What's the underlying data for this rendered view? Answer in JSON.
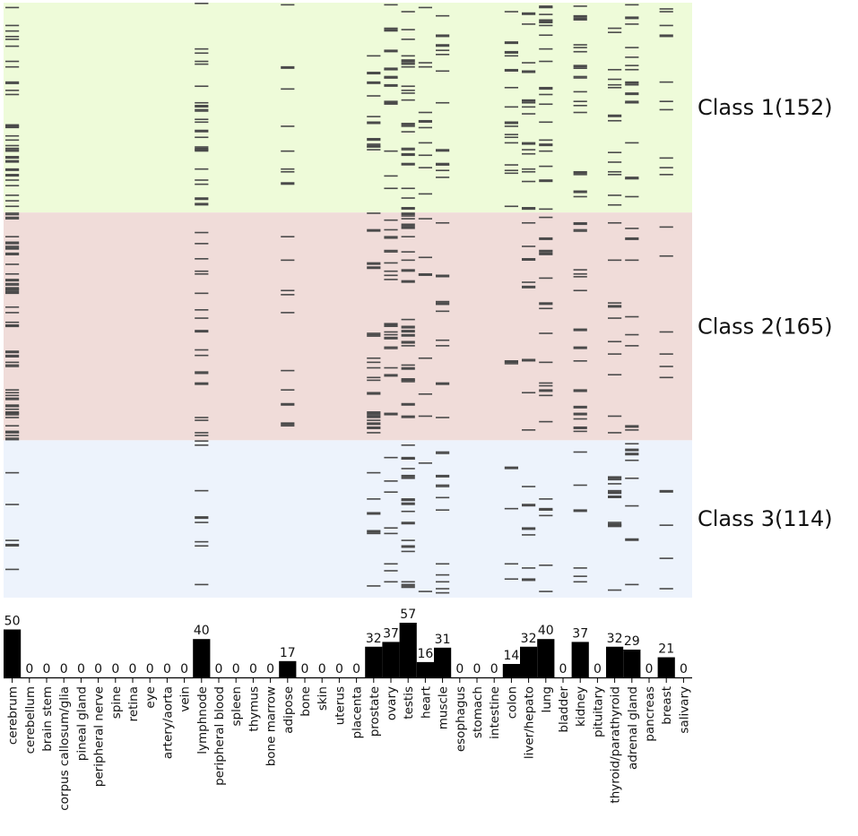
{
  "chart_data": {
    "type": "heatmap",
    "title": "",
    "tissues": [
      "cerebrum",
      "cerebellum",
      "brain stem",
      "corpus callosum/glia",
      "pineal gland",
      "peripheral nerve",
      "spine",
      "retina",
      "eye",
      "artery/aorta",
      "vein",
      "lymphnode",
      "peripheral blood",
      "spleen",
      "thymus",
      "bone marrow",
      "adipose",
      "bone",
      "skin",
      "uterus",
      "placenta",
      "prostate",
      "ovary",
      "testis",
      "heart",
      "muscle",
      "esophagus",
      "stomach",
      "intestine",
      "colon",
      "liver/hepato",
      "lung",
      "bladder",
      "kidney",
      "pituitary",
      "thyroid/parathyroid",
      "adrenal gland",
      "pancreas",
      "breast",
      "salivary"
    ],
    "classes": [
      {
        "label": "Class 1(152)",
        "count": 152,
        "color": "#eefbd9"
      },
      {
        "label": "Class 2(165)",
        "count": 165,
        "color": "#f0dcd9"
      },
      {
        "label": "Class 3(114)",
        "count": 114,
        "color": "#edf3fc"
      }
    ],
    "bar_values": [
      50,
      0,
      0,
      0,
      0,
      0,
      0,
      0,
      0,
      0,
      0,
      40,
      0,
      0,
      0,
      0,
      17,
      0,
      0,
      0,
      0,
      32,
      37,
      57,
      16,
      31,
      0,
      0,
      0,
      14,
      32,
      40,
      0,
      37,
      0,
      32,
      29,
      0,
      21,
      0
    ],
    "mark_color": "#4a4a4a",
    "bar_color": "#000000",
    "marks_per_class": [
      {
        "cerebrum": 30,
        "lymphnode": 22,
        "adipose": 8,
        "prostate": 12,
        "ovary": 14,
        "testis": 24,
        "heart": 10,
        "muscle": 12,
        "colon": 16,
        "liver/hepato": 16,
        "lung": 20,
        "kidney": 18,
        "thyroid/parathyroid": 14,
        "adrenal gland": 16,
        "breast": 10
      },
      {
        "cerebrum": 48,
        "lymphnode": 18,
        "adipose": 10,
        "prostate": 22,
        "ovary": 20,
        "testis": 26,
        "heart": 6,
        "muscle": 10,
        "colon": 2,
        "liver/hepato": 8,
        "lung": 14,
        "kidney": 18,
        "thyroid/parathyroid": 10,
        "adrenal gland": 8,
        "breast": 6
      },
      {
        "cerebrum": 5,
        "lymphnode": 8,
        "adipose": 0,
        "prostate": 6,
        "ovary": 8,
        "testis": 18,
        "heart": 2,
        "muscle": 12,
        "colon": 4,
        "liver/hepato": 6,
        "lung": 6,
        "kidney": 6,
        "thyroid/parathyroid": 10,
        "adrenal gland": 8,
        "breast": 4
      }
    ]
  }
}
